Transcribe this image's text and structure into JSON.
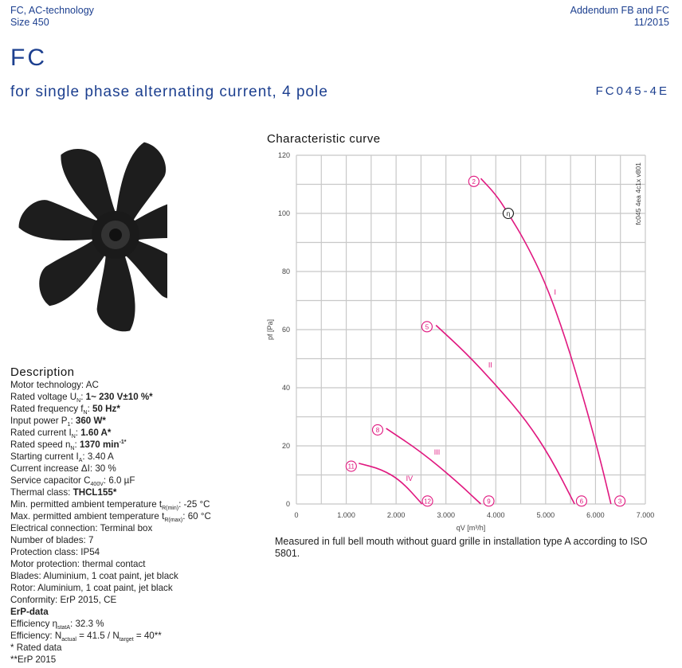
{
  "header": {
    "left_line1": "FC, AC-technology",
    "left_line2": "Size 450",
    "right_line1": "Addendum FB and FC",
    "right_line2": "11/2015"
  },
  "title": "FC",
  "subtitle": "for single phase alternating current, 4 pole",
  "model": "FC045-4E",
  "description": {
    "heading": "Description",
    "rows": [
      {
        "label": "Motor technology: ",
        "value": "AC"
      },
      {
        "label": "Rated voltage U",
        "sub": "N",
        "sep": ": ",
        "value": "1~ 230 V±10 %*",
        "bold": true
      },
      {
        "label": "Rated frequency f",
        "sub": "N",
        "sep": ": ",
        "value": "50 Hz*",
        "bold": true
      },
      {
        "label": "Input power P",
        "sub": "1",
        "sep": ": ",
        "value": "360 W*",
        "bold": true
      },
      {
        "label": "Rated current I",
        "sub": "N",
        "sep": ": ",
        "value": "1.60 A*",
        "bold": true
      },
      {
        "label": "Rated speed n",
        "sub": "N",
        "sep": ": ",
        "value": "1370 min",
        "sup": "-1*",
        "bold": true
      },
      {
        "label": "Starting current I",
        "sub": "A",
        "sep": ": ",
        "value": "3.40 A"
      },
      {
        "label": "Current increase ΔI: ",
        "value": "30 %"
      },
      {
        "label": "Service capacitor C",
        "sub": "400V",
        "sep": ": ",
        "value": "6.0 µF"
      },
      {
        "label": "Thermal class: ",
        "value": "THCL155*",
        "bold": true
      },
      {
        "label": "Min. permitted ambient temperature t",
        "sub": "R(min)",
        "sep": ": ",
        "value": "-25 °C"
      },
      {
        "label": "Max. permitted ambient temperature t",
        "sub": "R(max)",
        "sep": ": ",
        "value": "60 °C"
      },
      {
        "label": "Electrical connection: ",
        "value": "Terminal box"
      },
      {
        "label": "Number of blades: ",
        "value": "7"
      },
      {
        "label": "Protection class: ",
        "value": "IP54"
      },
      {
        "label": "Motor protection: ",
        "value": "thermal contact"
      },
      {
        "label": "Blades: ",
        "value": "Aluminium, 1 coat paint, jet black"
      },
      {
        "label": "Rotor: ",
        "value": "Aluminium, 1 coat paint, jet black"
      },
      {
        "label": "Conformity: ",
        "value": "ErP 2015, CE"
      }
    ],
    "erp_heading": "ErP-data",
    "eff1": {
      "label": "Efficiency η",
      "sub": "statA",
      "value": ": 32.3 %"
    },
    "eff2": {
      "a": "Efficiency: N",
      "sub1": "actual",
      "b": " = 41.5 / N",
      "sub2": "target",
      "c": " = 40**"
    },
    "foot1": "* Rated data",
    "foot2": "**ErP 2015"
  },
  "chart_title": "Characteristic curve",
  "note": "Measured in full bell mouth without guard grille in installation type A according to ISO 5801.",
  "chart_data": {
    "type": "line",
    "xlabel": "qV [m³/h]",
    "ylabel": "pf [Pa]",
    "xlim": [
      0,
      7000
    ],
    "ylim": [
      0,
      120
    ],
    "xticks": [
      "0",
      "1.000",
      "2.000",
      "3.000",
      "4.000",
      "5.000",
      "6.000",
      "7.000"
    ],
    "yticks": [
      "0",
      "20",
      "40",
      "60",
      "80",
      "100",
      "120"
    ],
    "grid": true,
    "code": "fc045 4ea 4c1x v801",
    "color": "#e0177f",
    "series": [
      {
        "name": "I",
        "points": [
          [
            3700,
            112
          ],
          [
            4000,
            106.5
          ],
          [
            4250,
            100
          ],
          [
            4600,
            90
          ],
          [
            5000,
            76
          ],
          [
            5400,
            57
          ],
          [
            5800,
            34
          ],
          [
            6100,
            15
          ],
          [
            6310,
            0
          ]
        ]
      },
      {
        "name": "II",
        "points": [
          [
            2800,
            61.5
          ],
          [
            3400,
            52
          ],
          [
            4000,
            41
          ],
          [
            4600,
            29
          ],
          [
            5100,
            16
          ],
          [
            5580,
            0
          ]
        ]
      },
      {
        "name": "III",
        "points": [
          [
            1800,
            26
          ],
          [
            2500,
            18
          ],
          [
            3200,
            8
          ],
          [
            3700,
            0
          ]
        ]
      },
      {
        "name": "IV",
        "points": [
          [
            1250,
            14
          ],
          [
            1700,
            12
          ],
          [
            2100,
            8
          ],
          [
            2520,
            0
          ]
        ]
      }
    ],
    "series_labels": [
      {
        "text": "I",
        "x": 5170,
        "y": 72
      },
      {
        "text": "II",
        "x": 3850,
        "y": 47
      },
      {
        "text": "III",
        "x": 2760,
        "y": 17
      },
      {
        "text": "IV",
        "x": 2200,
        "y": 8
      }
    ],
    "markers": [
      {
        "text": "2",
        "x": 3560,
        "y": 111
      },
      {
        "text": "η",
        "x": 4250,
        "y": 100,
        "color": "#111"
      },
      {
        "text": "3",
        "x": 6490,
        "y": 1
      },
      {
        "text": "5",
        "x": 2620,
        "y": 61
      },
      {
        "text": "6",
        "x": 5720,
        "y": 1
      },
      {
        "text": "8",
        "x": 1630,
        "y": 25.5
      },
      {
        "text": "9",
        "x": 3860,
        "y": 1
      },
      {
        "text": "11",
        "x": 1100,
        "y": 13
      },
      {
        "text": "12",
        "x": 2630,
        "y": 1
      }
    ]
  }
}
